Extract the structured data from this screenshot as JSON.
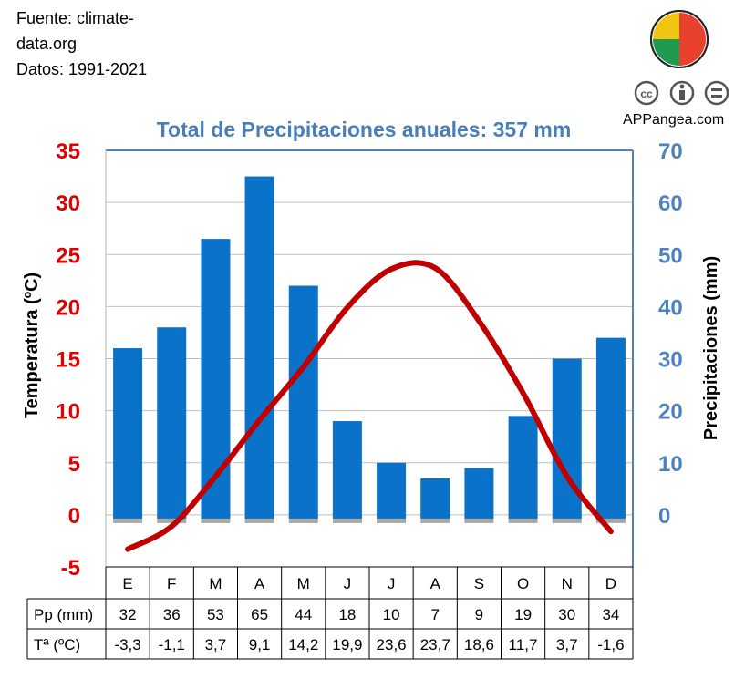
{
  "source": {
    "line1": "Fuente: climate-",
    "line2": "data.org",
    "line3": "Datos: 1991-2021"
  },
  "brand": {
    "name": "APPangea.com",
    "logo_colors": [
      "#f2c511",
      "#e8412e",
      "#1f9a4f",
      "#3a7fc4"
    ],
    "license_icons": [
      "cc-icon",
      "by-icon",
      "nd-icon"
    ]
  },
  "chart_data": {
    "type": "bar",
    "title": "Total de Precipitaciones anuales: 357 mm",
    "categories": [
      "E",
      "F",
      "M",
      "A",
      "M",
      "J",
      "J",
      "A",
      "S",
      "O",
      "N",
      "D"
    ],
    "series": [
      {
        "name": "Pp (mm)",
        "type": "bar",
        "axis": "right",
        "color": "#0b72c9",
        "values": [
          32,
          36,
          53,
          65,
          44,
          18,
          10,
          7,
          9,
          19,
          30,
          34
        ]
      },
      {
        "name": "Tª (ºC)",
        "type": "line",
        "axis": "left",
        "color": "#c00000",
        "values": [
          -3.3,
          -1.1,
          3.7,
          9.1,
          14.2,
          19.9,
          23.6,
          23.7,
          18.6,
          11.7,
          3.7,
          -1.6
        ]
      }
    ],
    "table_rows": [
      {
        "label": "Pp (mm)",
        "cells": [
          "32",
          "36",
          "53",
          "65",
          "44",
          "18",
          "10",
          "7",
          "9",
          "19",
          "30",
          "34"
        ]
      },
      {
        "label": "Tª (ºC)",
        "cells": [
          "-3,3",
          "-1,1",
          "3,7",
          "9,1",
          "14,2",
          "19,9",
          "23,6",
          "23,7",
          "18,6",
          "11,7",
          "3,7",
          "-1,6"
        ]
      }
    ],
    "ylabel_left": "Temperatura (ºC)",
    "ylabel_right": "Precipitaciones (mm)",
    "ylim_left": [
      -5,
      35
    ],
    "ylim_right": [
      -10,
      70
    ],
    "yticks_left": [
      "35",
      "30",
      "25",
      "20",
      "15",
      "10",
      "5",
      "0",
      "-5"
    ],
    "yticks_right": [
      "70",
      "60",
      "50",
      "40",
      "30",
      "20",
      "10",
      "0"
    ],
    "left_axis_color": "#e00000",
    "right_axis_color": "#4f81bd",
    "grid": true
  }
}
